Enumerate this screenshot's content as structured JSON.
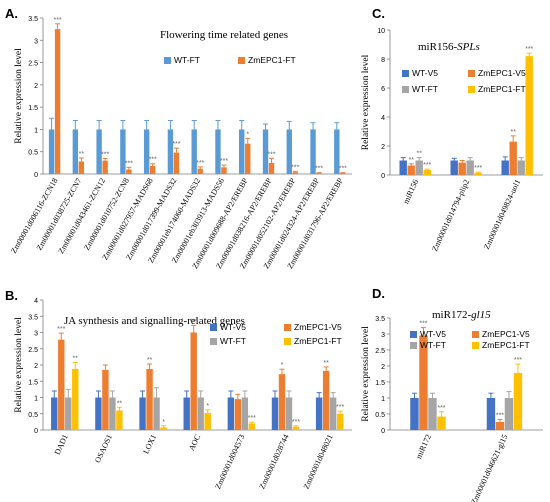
{
  "colors": {
    "wt_ft": "#5b9bd5",
    "zm_ft": "#ed7d31",
    "wt_v5": "#4472c4",
    "zm_v5": "#ed7d31",
    "wt_ft_gray": "#a5a5a5",
    "zm_ft_yellow": "#ffc000",
    "axis": "#7f7f7f",
    "star": "#666666"
  },
  "chart_data": [
    {
      "panel": "A.",
      "type": "bar",
      "title": "Flowering time related genes",
      "ylabel": "Relative expression level",
      "ylim": [
        0,
        3.5
      ],
      "yticks": [
        "0",
        "0.5",
        "1",
        "1.5",
        "2",
        "2.5",
        "3",
        "3.5"
      ],
      "categories": [
        "Zm00001d006116-ZCN18",
        "Zm00001d038725-ZCN7",
        "Zm00001d043461-ZCN12",
        "Zm00001d010752-ZCN8",
        "Zm00001d027957-MADS68",
        "Zm00001d017399-MADS32",
        "Zm00001eb174060-MADS32",
        "Zm00001eb303913-MADS56",
        "Zm00001d009688-AP2/EREBP",
        "Zm00001d038216-AP2/EREBP",
        "Zm00001d052102-AP2/EREBP",
        "Zm00001d024324-AP2/EREBP",
        "Zm00001d031796-AP2/EREBP"
      ],
      "series": [
        {
          "name": "WT-FT",
          "color_key": "wt_ft",
          "values": [
            1,
            1,
            1,
            1,
            1,
            1,
            1,
            1,
            1,
            1,
            1,
            1,
            1
          ],
          "errors": [
            0.25,
            0.2,
            0.2,
            0.2,
            0.2,
            0.2,
            0.2,
            0.2,
            0.2,
            0.12,
            0.18,
            0.15,
            0.15
          ]
        },
        {
          "name": "ZmEPC1-FT",
          "color_key": "zm_ft",
          "values": [
            3.25,
            0.28,
            0.3,
            0.1,
            0.18,
            0.48,
            0.12,
            0.15,
            0.68,
            0.25,
            0.04,
            0.02,
            0.02
          ],
          "errors": [
            0.12,
            0.08,
            0.05,
            0.05,
            0.05,
            0.1,
            0.04,
            0.05,
            0.12,
            0.1,
            0.02,
            0.01,
            0.01
          ]
        }
      ],
      "significance": [
        "***",
        "**",
        "***",
        "***",
        "***",
        "***",
        "***",
        "***",
        "*",
        "***",
        "***",
        "***",
        "***"
      ]
    },
    {
      "panel": "C.",
      "type": "bar",
      "title": "miR156-SPLs",
      "title_plain": "miR156-",
      "title_italic": "SPLs",
      "ylabel": "Relative expression level",
      "ylim": [
        0,
        10
      ],
      "yticks": [
        "0",
        "2",
        "4",
        "6",
        "8",
        "10"
      ],
      "categories": [
        "miR156",
        "Zm00001d014794-plip2",
        "Zm00001d049824-uol1"
      ],
      "series": [
        {
          "name": "WT-V5",
          "color_key": "wt_v5",
          "values": [
            1,
            1,
            1
          ],
          "errors": [
            0.2,
            0.15,
            0.25
          ]
        },
        {
          "name": "ZmEPC1-V5",
          "color_key": "zm_v5",
          "values": [
            0.65,
            0.85,
            2.3
          ],
          "errors": [
            0.12,
            0.15,
            0.4
          ]
        },
        {
          "name": "WT-FT",
          "color_key": "wt_ft_gray",
          "values": [
            1,
            1,
            1
          ],
          "errors": [
            0.2,
            0.2,
            0.2
          ]
        },
        {
          "name": "ZmEPC1-FT",
          "color_key": "zm_ft_yellow",
          "values": [
            0.35,
            0.15,
            8.2
          ],
          "errors": [
            0.05,
            0.05,
            0.2
          ]
        }
      ],
      "significance": [
        {
          "series": 1,
          "cats": [
            "**",
            "",
            "**"
          ]
        },
        {
          "series": 2,
          "cats": [
            "**",
            "",
            ""
          ]
        },
        {
          "series": 3,
          "cats": [
            "***",
            "***",
            "***"
          ]
        }
      ]
    },
    {
      "panel": "B.",
      "type": "bar",
      "title": "JA synthesis and signalling-related genes",
      "ylabel": "Relative expression level",
      "ylim": [
        0,
        4
      ],
      "yticks": [
        "0",
        "0.5",
        "1",
        "1.5",
        "2",
        "2.5",
        "3",
        "3.5",
        "4"
      ],
      "categories": [
        "DAD1",
        "OSAOS1",
        "LOX1",
        "AOC",
        "Zm00001d004573",
        "Zm00001d028744",
        "Zm00001d048021"
      ],
      "series": [
        {
          "name": "WT-V5",
          "color_key": "wt_v5",
          "values": [
            1,
            1,
            1,
            1,
            1,
            1,
            1
          ],
          "errors": [
            0.2,
            0.2,
            0.2,
            0.2,
            0.2,
            0.2,
            0.15
          ]
        },
        {
          "name": "ZmEPC1-V5",
          "color_key": "zm_v5",
          "values": [
            2.78,
            1.85,
            1.88,
            3.0,
            0.95,
            1.72,
            1.82
          ],
          "errors": [
            0.2,
            0.15,
            0.15,
            0.22,
            0.15,
            0.15,
            0.12
          ]
        },
        {
          "name": "WT-FT",
          "color_key": "wt_ft_gray",
          "values": [
            1,
            1,
            1,
            1,
            1,
            1,
            1
          ],
          "errors": [
            0.25,
            0.2,
            0.3,
            0.2,
            0.2,
            0.2,
            0.15
          ]
        },
        {
          "name": "ZmEPC1-FT",
          "color_key": "zm_ft_yellow",
          "values": [
            1.88,
            0.6,
            0.08,
            0.52,
            0.2,
            0.1,
            0.5
          ],
          "errors": [
            0.2,
            0.1,
            0.05,
            0.1,
            0.04,
            0.03,
            0.08
          ]
        }
      ],
      "significance": [
        {
          "series": 1,
          "cats": [
            "***",
            "",
            "**",
            "***",
            "",
            "*",
            "**"
          ]
        },
        {
          "series": 3,
          "cats": [
            "**",
            "**",
            "*",
            "*",
            "***",
            "***",
            "***"
          ]
        }
      ]
    },
    {
      "panel": "D.",
      "type": "bar",
      "title": "miR172-gl15",
      "title_plain": "miR172-",
      "title_italic": "gl15",
      "ylabel": "Relative expression level",
      "ylim": [
        0,
        3.5
      ],
      "yticks": [
        "0",
        "0.5",
        "1",
        "1.5",
        "2",
        "2.5",
        "3",
        "3.5"
      ],
      "categories": [
        "miR172",
        "Zm00001d046621-gl15"
      ],
      "series": [
        {
          "name": "WT-V5",
          "color_key": "wt_v5",
          "values": [
            1,
            1
          ],
          "errors": [
            0.15,
            0.15
          ]
        },
        {
          "name": "ZmEPC1-V5",
          "color_key": "zm_v5",
          "values": [
            2.95,
            0.25
          ],
          "errors": [
            0.25,
            0.08
          ]
        },
        {
          "name": "WT-FT",
          "color_key": "wt_ft_gray",
          "values": [
            1,
            1
          ],
          "errors": [
            0.15,
            0.2
          ]
        },
        {
          "name": "ZmEPC1-FT",
          "color_key": "zm_ft_yellow",
          "values": [
            0.42,
            1.78
          ],
          "errors": [
            0.15,
            0.28
          ]
        }
      ],
      "significance": [
        {
          "series": 1,
          "cats": [
            "***",
            "***"
          ]
        },
        {
          "series": 3,
          "cats": [
            "***",
            "***"
          ]
        }
      ]
    }
  ]
}
